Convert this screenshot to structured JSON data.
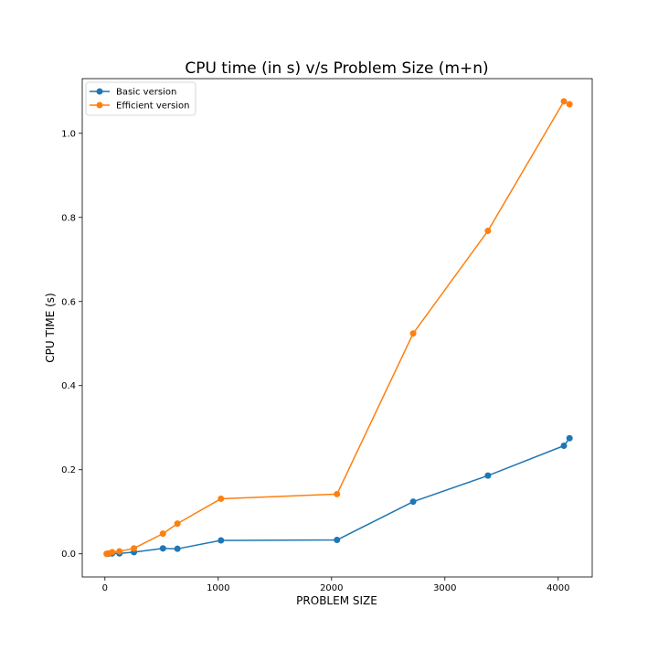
{
  "chart_data": {
    "type": "line",
    "title": "CPU time (in s) v/s Problem Size (m+n)",
    "xlabel": "PROBLEM SIZE",
    "ylabel": "CPU TIME (s)",
    "xlim": [
      -200,
      4300
    ],
    "ylim": [
      -0.055,
      1.13
    ],
    "xticks": [
      0,
      1000,
      2000,
      3000,
      4000
    ],
    "xtick_labels": [
      "0",
      "1000",
      "2000",
      "3000",
      "4000"
    ],
    "yticks": [
      0.0,
      0.2,
      0.4,
      0.6,
      0.8,
      1.0
    ],
    "ytick_labels": [
      "0.0",
      "0.2",
      "0.4",
      "0.6",
      "0.8",
      "1.0"
    ],
    "grid": false,
    "legend_position": "top-left",
    "x": [
      16,
      32,
      64,
      128,
      256,
      512,
      640,
      1024,
      2048,
      2720,
      3380,
      4050,
      4100
    ],
    "series": [
      {
        "name": "Basic version",
        "color": "#1f77b4",
        "values": [
          0.0,
          0.0003,
          0.0008,
          0.001,
          0.004,
          0.013,
          0.012,
          0.032,
          0.033,
          0.124,
          0.186,
          0.257,
          0.275
        ]
      },
      {
        "name": "Efficient version",
        "color": "#ff7f0e",
        "values": [
          0.0,
          0.001,
          0.004,
          0.006,
          0.013,
          0.048,
          0.072,
          0.131,
          0.142,
          0.524,
          0.768,
          1.076,
          1.069
        ]
      }
    ]
  }
}
